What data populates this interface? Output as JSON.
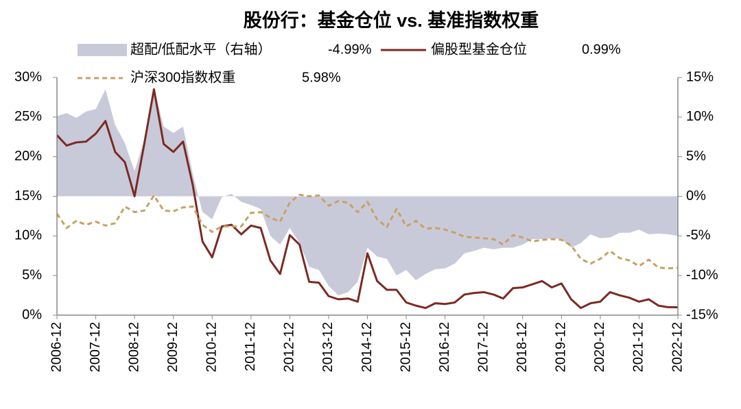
{
  "chart_data": {
    "type": "combo",
    "title": "股份行：基金仓位 vs. 基准指数权重",
    "categories": [
      "2006-12",
      null,
      null,
      null,
      "2007-12",
      null,
      null,
      null,
      "2008-12",
      null,
      null,
      null,
      "2009-12",
      null,
      null,
      null,
      "2010-12",
      null,
      null,
      null,
      "2011-12",
      null,
      null,
      null,
      "2012-12",
      null,
      null,
      null,
      "2013-12",
      null,
      null,
      null,
      "2014-12",
      null,
      null,
      null,
      "2015-12",
      null,
      null,
      null,
      "2016-12",
      null,
      null,
      null,
      "2017-12",
      null,
      null,
      null,
      "2018-12",
      null,
      null,
      null,
      "2019-12",
      null,
      null,
      null,
      "2020-12",
      null,
      null,
      null,
      "2021-12",
      null,
      null,
      null,
      "2022-12"
    ],
    "series": [
      {
        "name": "超配/低配水平（右轴）",
        "legend_value": "-4.99%",
        "kind": "area",
        "axis": "y2",
        "color": "#c9cad9",
        "values": [
          10.1,
          10.5,
          9.9,
          10.7,
          11.0,
          13.5,
          9.0,
          6.7,
          3.2,
          7.1,
          13.7,
          8.8,
          8.0,
          8.8,
          2.8,
          -2.0,
          -2.9,
          -0.1,
          0.3,
          -0.7,
          -1.1,
          -1.6,
          -5.0,
          -6.1,
          -4.0,
          -5.9,
          -8.9,
          -9.3,
          -11.3,
          -12.5,
          -12.1,
          -10.8,
          -6.5,
          -7.6,
          -7.9,
          -10.0,
          -9.3,
          -10.6,
          -9.8,
          -9.2,
          -9.1,
          -8.5,
          -7.2,
          -6.9,
          -6.5,
          -6.7,
          -6.5,
          -6.5,
          -6.1,
          -5.4,
          -5.4,
          -5.3,
          -5.4,
          -6.5,
          -5.9,
          -4.8,
          -5.3,
          -5.2,
          -4.6,
          -4.6,
          -4.2,
          -4.8,
          -4.7,
          -4.8,
          -4.99
        ]
      },
      {
        "name": "偏股型基金仓位",
        "legend_value": "0.99%",
        "kind": "line",
        "color": "#7b2a22",
        "values": [
          22.7,
          21.4,
          21.8,
          21.9,
          22.9,
          24.5,
          20.6,
          19.3,
          15.0,
          21.6,
          28.5,
          21.6,
          20.6,
          21.9,
          16.4,
          9.3,
          7.3,
          11.2,
          11.4,
          10.2,
          11.3,
          11.0,
          6.9,
          5.2,
          10.1,
          8.9,
          4.2,
          4.1,
          2.4,
          2.0,
          2.1,
          1.7,
          7.8,
          4.3,
          3.2,
          3.2,
          1.6,
          1.2,
          0.9,
          1.5,
          1.4,
          1.6,
          2.6,
          2.8,
          2.9,
          2.6,
          2.1,
          3.4,
          3.5,
          3.9,
          4.3,
          3.5,
          4.0,
          2.0,
          0.9,
          1.5,
          1.7,
          2.9,
          2.5,
          2.2,
          1.7,
          2.0,
          1.2,
          1.0,
          0.99
        ]
      },
      {
        "name": "沪深300指数权重",
        "legend_value": "5.98%",
        "kind": "dashed",
        "color": "#c9a064",
        "values": [
          12.8,
          11.0,
          11.9,
          11.4,
          11.8,
          11.3,
          11.6,
          13.7,
          13.0,
          13.2,
          15.1,
          13.2,
          13.1,
          13.6,
          13.7,
          11.4,
          10.5,
          11.2,
          11.2,
          11.2,
          12.9,
          13.0,
          12.3,
          11.8,
          14.2,
          15.2,
          15.0,
          15.1,
          13.8,
          14.4,
          14.2,
          13.0,
          14.3,
          12.1,
          11.1,
          13.4,
          11.2,
          11.9,
          10.9,
          11.0,
          10.8,
          10.4,
          9.9,
          9.8,
          9.7,
          9.6,
          8.9,
          10.1,
          9.8,
          9.3,
          9.5,
          9.6,
          9.5,
          8.8,
          7.1,
          6.5,
          7.1,
          8.1,
          7.2,
          6.9,
          6.2,
          7.0,
          6.0,
          5.9,
          5.98
        ]
      }
    ],
    "ylim": [
      0,
      30
    ],
    "yticks": [
      {
        "value": 0,
        "label": "0%"
      },
      {
        "value": 5,
        "label": "5%"
      },
      {
        "value": 10,
        "label": "10%"
      },
      {
        "value": 15,
        "label": "15%"
      },
      {
        "value": 20,
        "label": "20%"
      },
      {
        "value": 25,
        "label": "25%"
      },
      {
        "value": 30,
        "label": "30%"
      }
    ],
    "y2lim": [
      -15,
      15
    ],
    "y2ticks": [
      {
        "value": -15,
        "label": "-15%"
      },
      {
        "value": -10,
        "label": "-10%"
      },
      {
        "value": -5,
        "label": "-5%"
      },
      {
        "value": 0,
        "label": "0%"
      },
      {
        "value": 5,
        "label": "5%"
      },
      {
        "value": 10,
        "label": "10%"
      },
      {
        "value": 15,
        "label": "15%"
      }
    ],
    "grid": false
  }
}
